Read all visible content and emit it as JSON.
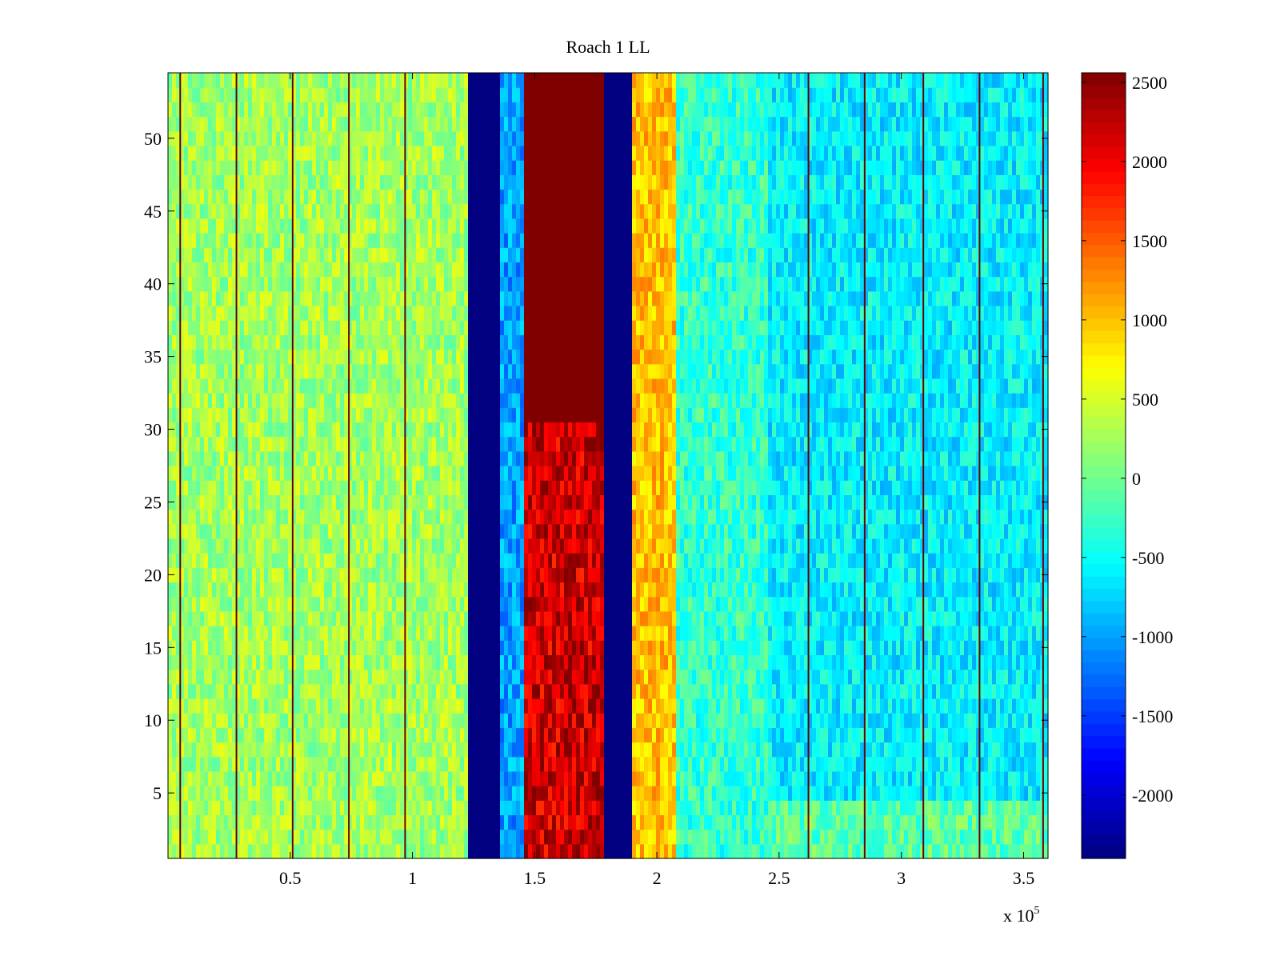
{
  "chart_data": {
    "type": "heatmap",
    "title": "Roach 1 LL",
    "xlabel": "",
    "ylabel": "",
    "x_exponent_label": "x 10",
    "x_exponent_power": "5",
    "xlim": [
      0,
      360000
    ],
    "ylim": [
      0.5,
      54.5
    ],
    "x_ticks": [
      50000,
      100000,
      150000,
      200000,
      250000,
      300000,
      350000
    ],
    "x_tick_labels": [
      "0.5",
      "1",
      "1.5",
      "2",
      "2.5",
      "3",
      "3.5"
    ],
    "y_ticks": [
      5,
      10,
      15,
      20,
      25,
      30,
      35,
      40,
      45,
      50
    ],
    "y_tick_labels": [
      "5",
      "10",
      "15",
      "20",
      "25",
      "30",
      "35",
      "40",
      "45",
      "50"
    ],
    "rows": 54,
    "colormap": "jet",
    "clim": [
      -2400,
      2560
    ],
    "colorbar": {
      "ticks": [
        2500,
        2000,
        1500,
        1000,
        500,
        0,
        -500,
        -1000,
        -1500,
        -2000
      ],
      "tick_labels": [
        "2500",
        "2000",
        "1500",
        "1000",
        "500",
        "0",
        "-500",
        "-1000",
        "-1500",
        "-2000"
      ]
    },
    "bands": [
      {
        "x": [
          0,
          123000
        ],
        "value": 250,
        "description": "light green/yellow noise"
      },
      {
        "x": [
          123000,
          136000
        ],
        "value": -2400,
        "description": "dark blue band"
      },
      {
        "x": [
          136000,
          145000
        ],
        "value": -1000,
        "description": "blue to cyan transition"
      },
      {
        "x": [
          145000,
          179000
        ],
        "value": 2560,
        "value_rows_1_30": 2000,
        "description": "dark red band, red/orange below row 30"
      },
      {
        "x": [
          179000,
          190000
        ],
        "value": -2400,
        "description": "dark blue band"
      },
      {
        "x": [
          190000,
          208000
        ],
        "value": 1000,
        "description": "orange/yellow band"
      },
      {
        "x": [
          208000,
          245000
        ],
        "value": -300,
        "description": "cyan/green noise"
      },
      {
        "x": [
          245000,
          360000
        ],
        "value": -600,
        "description": "cyan/blue noise, greener near bottom"
      }
    ],
    "dark_lines_x": [
      5000,
      28000,
      51000,
      74000,
      97000,
      262000,
      285000,
      309000,
      332000,
      358000
    ]
  }
}
